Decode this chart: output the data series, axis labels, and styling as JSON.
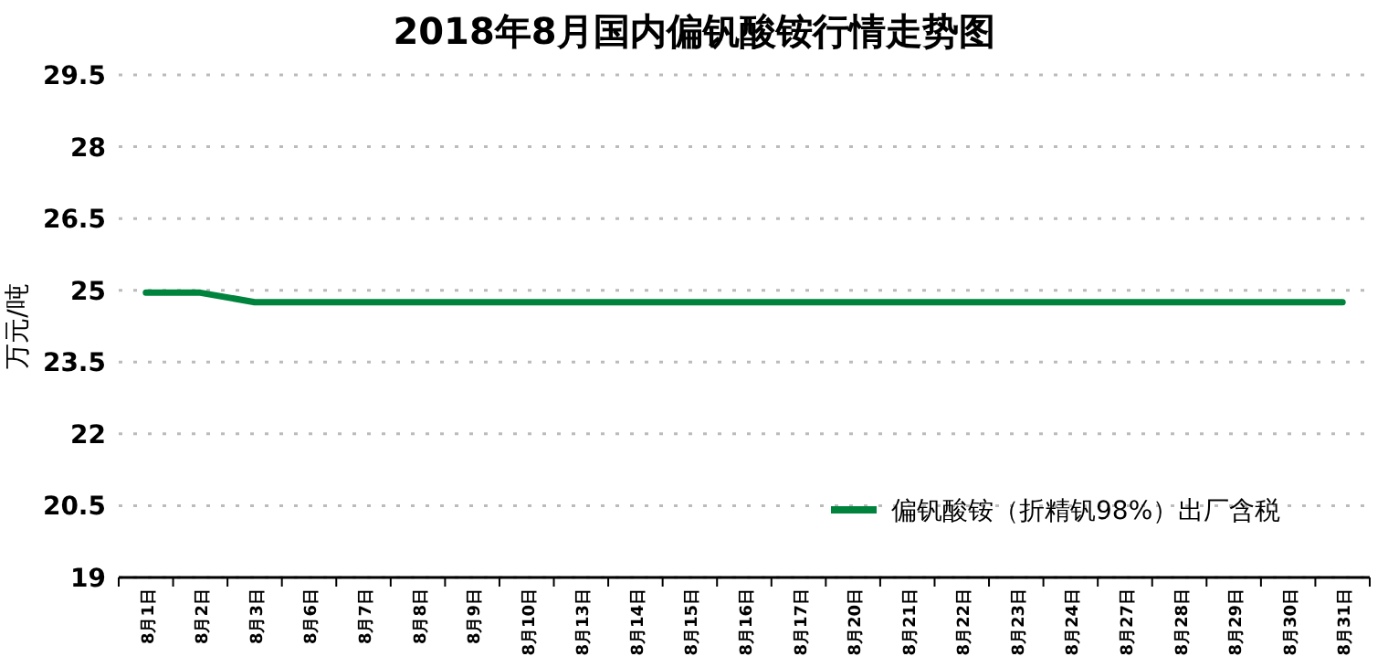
{
  "chart_data": {
    "type": "line",
    "title": "2018年8月国内偏钒酸铵行情走势图",
    "ylabel": "万元/吨",
    "categories": [
      "8月1日",
      "8月2日",
      "8月3日",
      "8月6日",
      "8月7日",
      "8月8日",
      "8月9日",
      "8月10日",
      "8月13日",
      "8月14日",
      "8月15日",
      "8月16日",
      "8月17日",
      "8月20日",
      "8月21日",
      "8月22日",
      "8月23日",
      "8月24日",
      "8月27日",
      "8月28日",
      "8月29日",
      "8月30日",
      "8月31日"
    ],
    "series": [
      {
        "name": "偏钒酸铵（折精钒98%）出厂含税",
        "color": "#00843d",
        "values": [
          24.95,
          24.95,
          24.75,
          24.75,
          24.75,
          24.75,
          24.75,
          24.75,
          24.75,
          24.75,
          24.75,
          24.75,
          24.75,
          24.75,
          24.75,
          24.75,
          24.75,
          24.75,
          24.75,
          24.75,
          24.75,
          24.75,
          24.75
        ]
      }
    ],
    "ylim": [
      19,
      29.5
    ],
    "yticks": [
      19,
      20.5,
      22,
      23.5,
      25,
      26.5,
      28,
      29.5
    ],
    "grid": "y",
    "legend": "bottom right",
    "marker": "none",
    "line_style": "solid"
  }
}
